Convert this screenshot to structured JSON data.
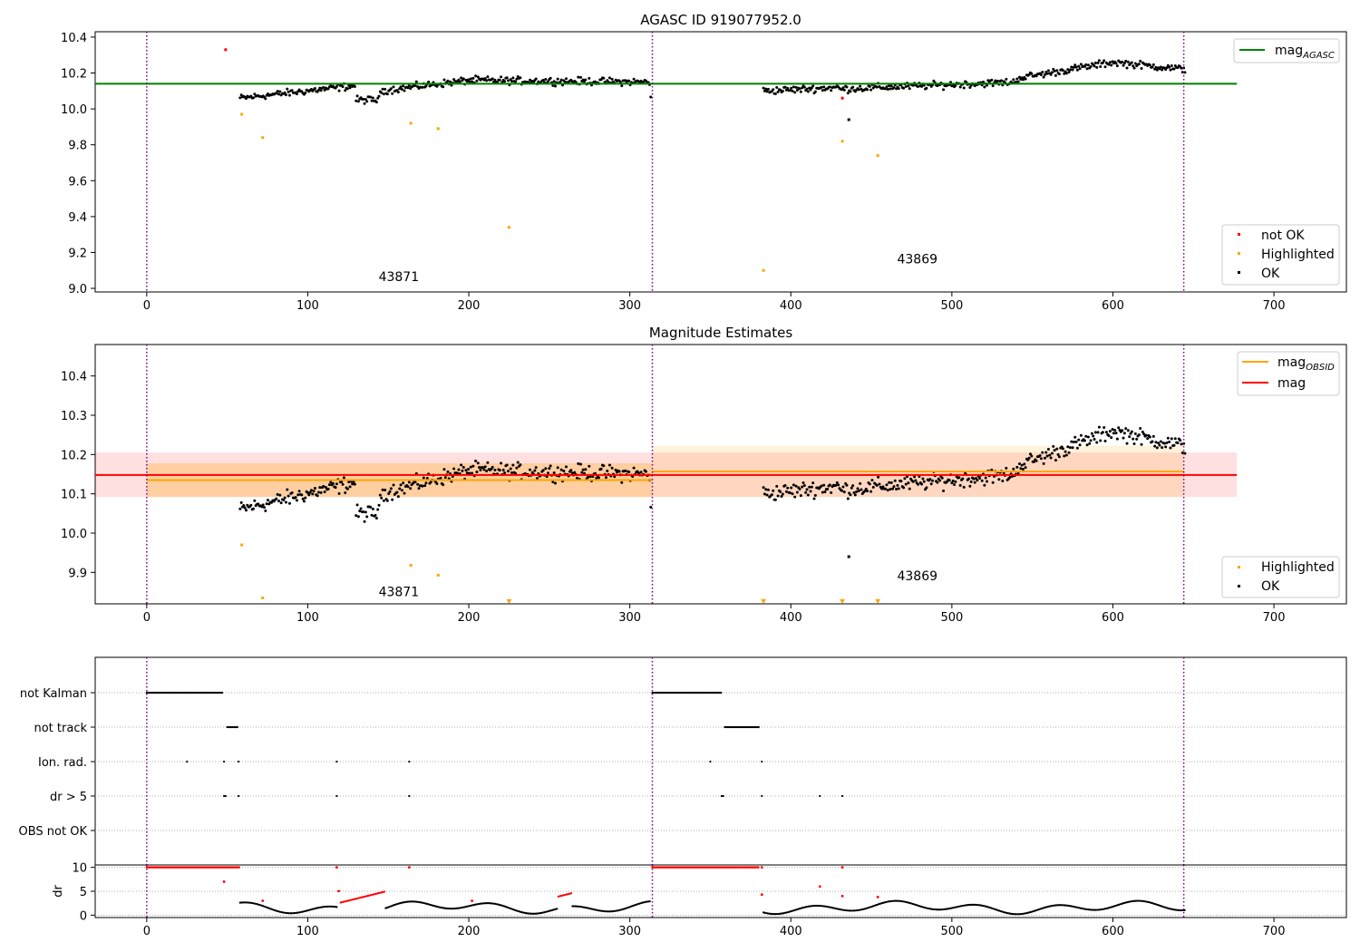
{
  "chart_data": [
    {
      "type": "scatter",
      "title": "AGASC ID 919077952.0",
      "xlabel": "",
      "ylabel": "",
      "xlim": [
        -32,
        745
      ],
      "ylim": [
        8.98,
        10.43
      ],
      "xticks": [
        0,
        100,
        200,
        300,
        400,
        500,
        600,
        700
      ],
      "yticks": [
        9.0,
        9.2,
        9.4,
        9.6,
        9.8,
        10.0,
        10.2,
        10.4
      ],
      "ytick_labels": [
        "9.0",
        "9.2",
        "9.4",
        "9.6",
        "9.8",
        "10.0",
        "10.2",
        "10.4"
      ],
      "obsid_boundaries": [
        0,
        314,
        644
      ],
      "obsid_labels": [
        {
          "text": "43871",
          "x": 144,
          "y": 9.04
        },
        {
          "text": "43869",
          "x": 466,
          "y": 9.14
        }
      ],
      "reference_lines": [
        {
          "name": "mag",
          "subscript": "AGASC",
          "value": 10.14,
          "x_range": [
            -32,
            677
          ],
          "color": "#008000"
        }
      ],
      "legend_upper": {
        "placement": "top-right",
        "entries": [
          {
            "name": "mag",
            "subscript": "AGASC",
            "color": "#008000"
          }
        ]
      },
      "legend_lower": {
        "placement": "lower-right",
        "entries": [
          {
            "name": "not OK",
            "color": "#ff0000"
          },
          {
            "name": "Highlighted",
            "color": "#ffa500"
          },
          {
            "name": "OK",
            "color": "#000000"
          }
        ]
      },
      "series": [
        {
          "name": "not OK",
          "color": "#ff0000",
          "x": [
            49,
            432
          ],
          "y": [
            10.33,
            10.06
          ]
        },
        {
          "name": "Highlighted",
          "color": "#ffa500",
          "x": [
            59,
            72,
            164,
            181,
            225,
            383,
            432,
            454
          ],
          "y": [
            9.97,
            9.84,
            9.92,
            9.89,
            9.34,
            9.1,
            9.82,
            9.74
          ]
        },
        {
          "name": "OK",
          "color": "#000000",
          "x": [
            436
          ],
          "y": [
            9.94
          ]
        }
      ]
    },
    {
      "type": "scatter",
      "title": "Magnitude Estimates",
      "xlabel": "",
      "ylabel": "",
      "xlim": [
        -32,
        745
      ],
      "ylim": [
        9.82,
        10.48
      ],
      "xticks": [
        0,
        100,
        200,
        300,
        400,
        500,
        600,
        700
      ],
      "yticks": [
        9.9,
        10.0,
        10.1,
        10.2,
        10.3,
        10.4
      ],
      "ytick_labels": [
        "9.9",
        "10.0",
        "10.1",
        "10.2",
        "10.3",
        "10.4"
      ],
      "obsid_boundaries": [
        0,
        314,
        644
      ],
      "obsid_labels": [
        {
          "text": "43871",
          "x": 144,
          "y": 9.84
        },
        {
          "text": "43869",
          "x": 466,
          "y": 9.88
        }
      ],
      "bands": [
        {
          "color": "#ff0000",
          "alpha": 0.12,
          "x_range": [
            -32,
            677
          ],
          "y_range": [
            10.092,
            10.205
          ]
        },
        {
          "color": "#ffa500",
          "alpha": 0.28,
          "x_range": [
            0,
            314
          ],
          "y_range": [
            10.092,
            10.178
          ]
        },
        {
          "color": "#ffa500",
          "alpha": 0.14,
          "x_range": [
            314,
            644
          ],
          "y_range": [
            10.092,
            10.222
          ]
        }
      ],
      "reference_lines": [
        {
          "name": "mag",
          "subscript": "OBSID",
          "color": "#ffa500",
          "segments": [
            {
              "x_range": [
                0,
                314
              ],
              "value": 10.135
            },
            {
              "x_range": [
                314,
                644
              ],
              "value": 10.157
            }
          ]
        },
        {
          "name": "mag",
          "color": "#ff0000",
          "value": 10.148,
          "x_range": [
            -32,
            677
          ]
        }
      ],
      "legend_upper": {
        "placement": "top-right",
        "entries": [
          {
            "name": "mag",
            "subscript": "OBSID",
            "color": "#ffa500"
          },
          {
            "name": "mag",
            "color": "#ff0000"
          }
        ]
      },
      "legend_lower": {
        "placement": "lower-right",
        "entries": [
          {
            "name": "Highlighted",
            "color": "#ffa500"
          },
          {
            "name": "OK",
            "color": "#000000"
          }
        ]
      },
      "series": [
        {
          "name": "Highlighted",
          "color": "#ffa500",
          "x": [
            59,
            72,
            164,
            181
          ],
          "y": [
            9.97,
            9.835,
            9.918,
            9.893
          ]
        },
        {
          "name": "Highlighted (below axis)",
          "color": "#ffa500",
          "marker": "triangle-down",
          "x": [
            225,
            383,
            432,
            454
          ],
          "y": [
            9.825,
            9.825,
            9.825,
            9.825
          ]
        },
        {
          "name": "OK",
          "color": "#000000",
          "x": [
            436
          ],
          "y": [
            9.94
          ]
        }
      ]
    },
    {
      "type": "scatter",
      "title": "",
      "xlabel": "",
      "ylabel": "",
      "xlim": [
        -32,
        745
      ],
      "xticks": [
        0,
        100,
        200,
        300,
        400,
        500,
        600,
        700
      ],
      "obsid_boundaries": [
        0,
        314,
        644
      ],
      "flag_rows": [
        "not Kalman",
        "not track",
        "Ion. rad.",
        "dr > 5",
        "OBS not OK"
      ],
      "flag_segments": [
        {
          "row": "not Kalman",
          "x_ranges": [
            [
              0,
              47
            ],
            [
              314,
              357
            ]
          ]
        },
        {
          "row": "not track",
          "x_ranges": [
            [
              50,
              57
            ],
            [
              359,
              380
            ]
          ]
        },
        {
          "row": "Ion. rad.",
          "x": [
            25,
            48,
            57,
            118,
            163,
            350,
            382
          ]
        },
        {
          "row": "dr > 5",
          "x": [
            48,
            49,
            57,
            118,
            163,
            357,
            358,
            382,
            418,
            432
          ]
        }
      ]
    },
    {
      "type": "scatter",
      "title": "",
      "xlabel": "",
      "ylabel": "dr",
      "xlim": [
        -32,
        745
      ],
      "ylim": [
        -0.5,
        10.5
      ],
      "xticks": [
        0,
        100,
        200,
        300,
        400,
        500,
        600,
        700
      ],
      "yticks": [
        0,
        5,
        10
      ],
      "ytick_labels": [
        "0",
        "5",
        "10"
      ],
      "obsid_boundaries": [
        0,
        314,
        644
      ],
      "red_segments": [
        [
          0,
          58
        ],
        [
          314,
          380
        ]
      ],
      "red_points": [
        {
          "x": 48,
          "y": 7
        },
        {
          "x": 72,
          "y": 3
        },
        {
          "x": 118,
          "y": 10
        },
        {
          "x": 163,
          "y": 10
        },
        {
          "x": 202,
          "y": 3
        },
        {
          "x": 382,
          "y": 10
        },
        {
          "x": 382,
          "y": 4.3
        },
        {
          "x": 418,
          "y": 6
        },
        {
          "x": 432,
          "y": 10
        },
        {
          "x": 432,
          "y": 4
        },
        {
          "x": 454,
          "y": 3.8
        }
      ]
    }
  ],
  "colors": {
    "ok": "#000000",
    "not_ok": "#ff0000",
    "highlighted": "#ffa500",
    "agasc_line": "#008000",
    "obsid_boundary": "#800080",
    "flag_grid": "#b0b0b0"
  }
}
